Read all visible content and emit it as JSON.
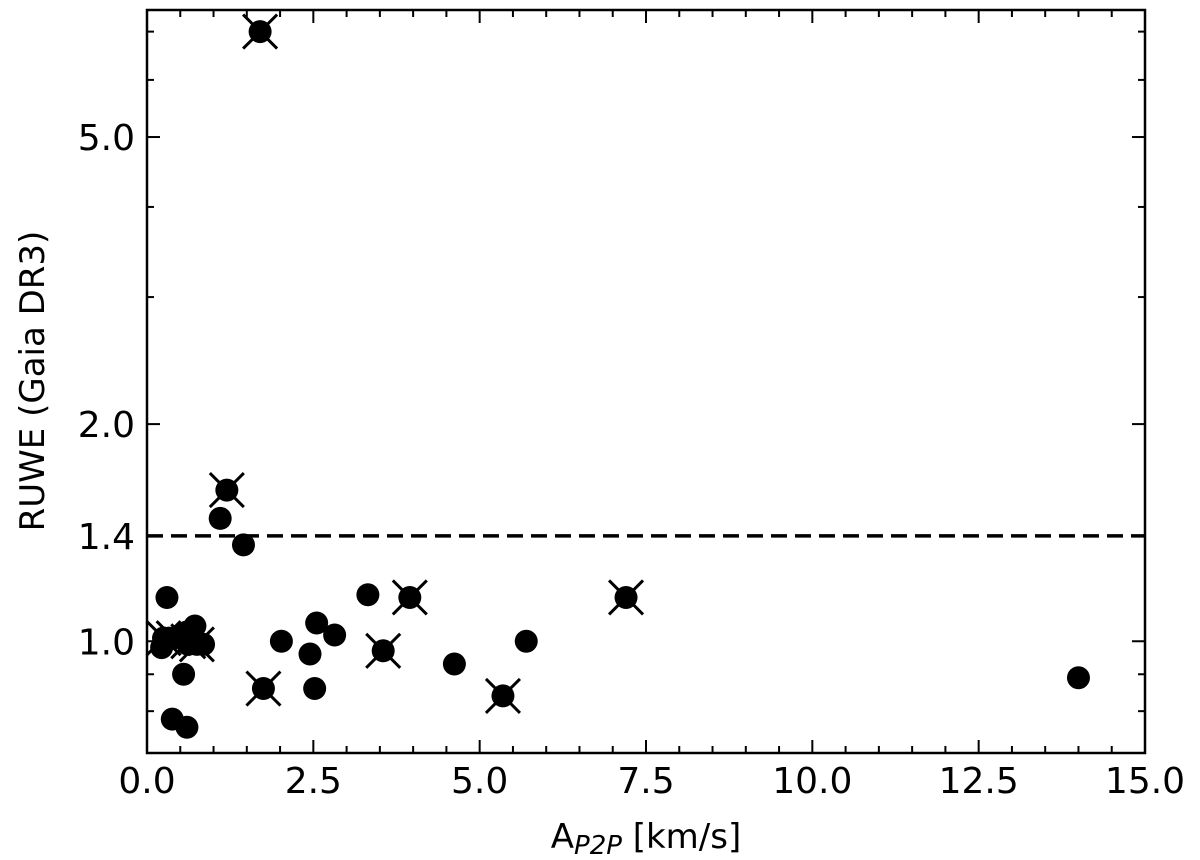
{
  "chart_data": {
    "type": "scatter",
    "title": "",
    "xlabel": "A",
    "xlabel_sub": "P2P",
    "xlabel_unit": " [km/s]",
    "ylabel": "RUWE (Gaia DR3)",
    "xlim": [
      0,
      15
    ],
    "ylim": [
      0.7,
      7.5
    ],
    "yscale": "log",
    "x_ticks": [
      0.0,
      2.5,
      5.0,
      7.5,
      10.0,
      12.5,
      15.0
    ],
    "x_tick_labels": [
      "0.0",
      "2.5",
      "5.0",
      "7.5",
      "10.0",
      "12.5",
      "15.0"
    ],
    "y_ticks": [
      1.0,
      1.4,
      2.0,
      5.0
    ],
    "y_tick_labels": [
      "1.0",
      "1.4",
      "2.0",
      "5.0"
    ],
    "grid": false,
    "threshold_line": {
      "y": 1.4,
      "style": "dashed"
    },
    "marker_color": "#000000",
    "series": [
      {
        "marker": "circle",
        "points": [
          [
            0.22,
            0.98
          ],
          [
            0.25,
            1.01
          ],
          [
            0.3,
            1.15
          ],
          [
            0.33,
            1.01
          ],
          [
            0.38,
            0.78
          ],
          [
            0.55,
            0.9
          ],
          [
            0.6,
            0.76
          ],
          [
            0.6,
            1.03
          ],
          [
            0.62,
            0.99
          ],
          [
            0.72,
            1.05
          ],
          [
            0.85,
            0.99
          ],
          [
            1.1,
            1.48
          ],
          [
            1.45,
            1.36
          ],
          [
            2.02,
            1.0
          ],
          [
            2.45,
            0.96
          ],
          [
            2.52,
            0.86
          ],
          [
            2.55,
            1.06
          ],
          [
            2.82,
            1.02
          ],
          [
            3.32,
            1.16
          ],
          [
            4.62,
            0.93
          ],
          [
            5.7,
            1.0
          ],
          [
            14.0,
            0.89
          ]
        ]
      },
      {
        "marker": "circle-x",
        "points": [
          [
            0.25,
            1.01
          ],
          [
            0.4,
            1.01
          ],
          [
            0.62,
            1.0
          ],
          [
            0.75,
            0.99
          ],
          [
            1.2,
            1.62
          ],
          [
            1.7,
            7.0
          ],
          [
            1.75,
            0.86
          ],
          [
            3.55,
            0.97
          ],
          [
            3.95,
            1.15
          ],
          [
            5.35,
            0.84
          ],
          [
            7.2,
            1.15
          ]
        ]
      }
    ]
  }
}
